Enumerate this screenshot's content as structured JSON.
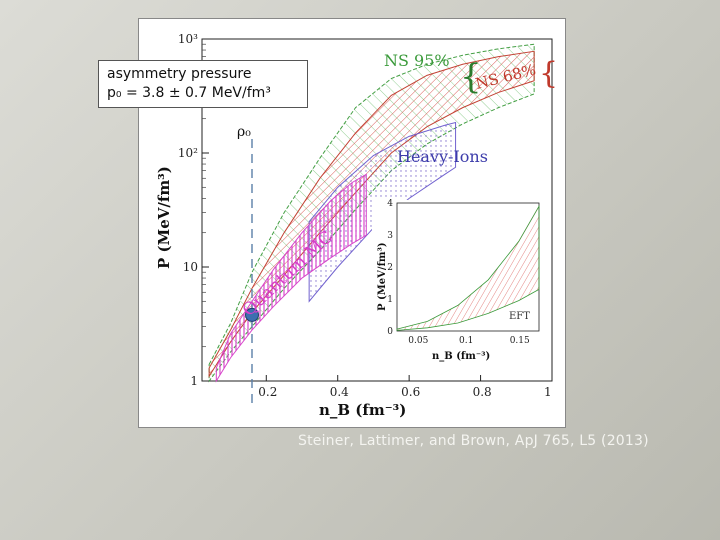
{
  "callout": {
    "line1": "asymmetry pressure",
    "line2": "p₀ = 3.8 ± 0.7 MeV/fm³"
  },
  "citation": "Steiner, Lattimer, and Brown, ApJ 765, L5 (2013)",
  "chart_data": {
    "type": "area",
    "xlabel": "n_B (fm⁻³)",
    "ylabel": "P (MeV/fm³)",
    "xlim": [
      0.02,
      1.0
    ],
    "ylim": [
      1,
      1000
    ],
    "y_scale": "log",
    "x_ticks": [
      "0.2",
      "0.4",
      "0.6",
      "0.8",
      "1"
    ],
    "y_ticks": [
      "1",
      "10",
      "10²",
      "10³"
    ],
    "x_tick_values": [
      0.2,
      0.4,
      0.6,
      0.8,
      1.0
    ],
    "y_tick_values": [
      1,
      10,
      100,
      1000
    ],
    "annotations": {
      "ns95": "NS 95%",
      "ns68": "NS 68%",
      "heavy_ions": "Heavy-Ions",
      "quantum_mc": "Quantum MC",
      "rho0": "ρ₀"
    },
    "rho0_point": {
      "x": 0.16,
      "y": 3.8
    },
    "series": [
      {
        "name": "NS 95%",
        "color": "#3a9a3a",
        "x": [
          0.04,
          0.1,
          0.16,
          0.25,
          0.35,
          0.45,
          0.55,
          0.65,
          0.75,
          0.85,
          0.95
        ],
        "lower": [
          1.0,
          1.8,
          3.0,
          6.5,
          14,
          32,
          70,
          120,
          180,
          250,
          330
        ],
        "upper": [
          1.4,
          3.2,
          9.0,
          30,
          90,
          250,
          450,
          600,
          720,
          820,
          900
        ]
      },
      {
        "name": "NS 68%",
        "color": "#c0392b",
        "x": [
          0.04,
          0.1,
          0.16,
          0.25,
          0.35,
          0.45,
          0.55,
          0.65,
          0.75,
          0.85,
          0.95
        ],
        "lower": [
          1.1,
          2.2,
          4.0,
          8.5,
          20,
          45,
          100,
          170,
          250,
          340,
          430
        ],
        "upper": [
          1.3,
          2.8,
          6.5,
          20,
          60,
          150,
          320,
          480,
          600,
          700,
          780
        ]
      },
      {
        "name": "Heavy-Ions",
        "color": "#6a5acd",
        "x": [
          0.32,
          0.4,
          0.5,
          0.6,
          0.7,
          0.73
        ],
        "lower": [
          5,
          10,
          22,
          40,
          65,
          75
        ],
        "upper": [
          25,
          50,
          95,
          140,
          175,
          185
        ]
      },
      {
        "name": "Quantum MC",
        "color": "#d63fc9",
        "x": [
          0.06,
          0.1,
          0.16,
          0.22,
          0.3,
          0.38,
          0.44,
          0.48
        ],
        "lower": [
          1.0,
          1.6,
          2.8,
          4.5,
          8,
          12,
          16,
          19
        ],
        "upper": [
          1.3,
          2.6,
          5.0,
          9.5,
          20,
          38,
          55,
          65
        ]
      }
    ],
    "inset": {
      "xlabel": "n_B (fm⁻³)",
      "ylabel": "P (MeV/fm³)",
      "xlim": [
        0.03,
        0.17
      ],
      "ylim": [
        0,
        4
      ],
      "x_ticks": [
        "0.05",
        "0.1",
        "0.15"
      ],
      "y_ticks": [
        "0",
        "1",
        "2",
        "3",
        "4"
      ],
      "x_tick_values": [
        0.05,
        0.1,
        0.15
      ],
      "y_tick_values": [
        0,
        1,
        2,
        3,
        4
      ],
      "label": "EFT",
      "band": {
        "x": [
          0.03,
          0.06,
          0.09,
          0.12,
          0.15,
          0.17
        ],
        "lower": [
          0.02,
          0.1,
          0.25,
          0.55,
          0.95,
          1.3
        ],
        "upper": [
          0.06,
          0.3,
          0.8,
          1.6,
          2.8,
          3.9
        ]
      }
    }
  }
}
